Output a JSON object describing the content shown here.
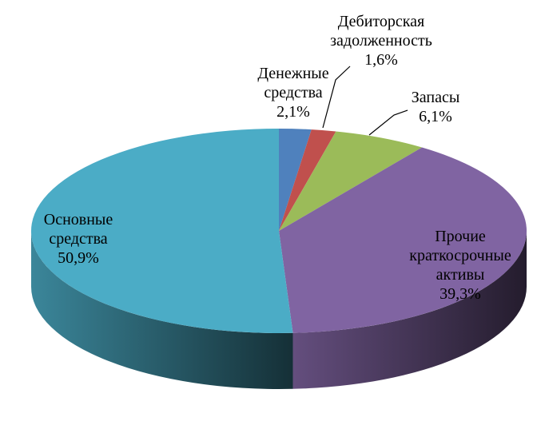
{
  "chart_data": {
    "type": "pie",
    "variant": "3d",
    "legend": "none",
    "slices": [
      {
        "lines": [
          "Денежные",
          "средства"
        ],
        "value_label": "2,1%",
        "value": 2.1,
        "color": "#4F81BD"
      },
      {
        "lines": [
          "Дебиторская",
          "задолженность"
        ],
        "value_label": "1,6%",
        "value": 1.6,
        "color": "#C0504D"
      },
      {
        "lines": [
          "Запасы"
        ],
        "value_label": "6,1%",
        "value": 6.1,
        "color": "#9BBB59"
      },
      {
        "lines": [
          "Прочие",
          "краткосрочные",
          "активы"
        ],
        "value_label": "39,3%",
        "value": 39.3,
        "color": "#8064A2"
      },
      {
        "lines": [
          "Основные",
          "средства"
        ],
        "value_label": "50,9%",
        "value": 50.9,
        "color": "#4BACC6"
      }
    ]
  }
}
